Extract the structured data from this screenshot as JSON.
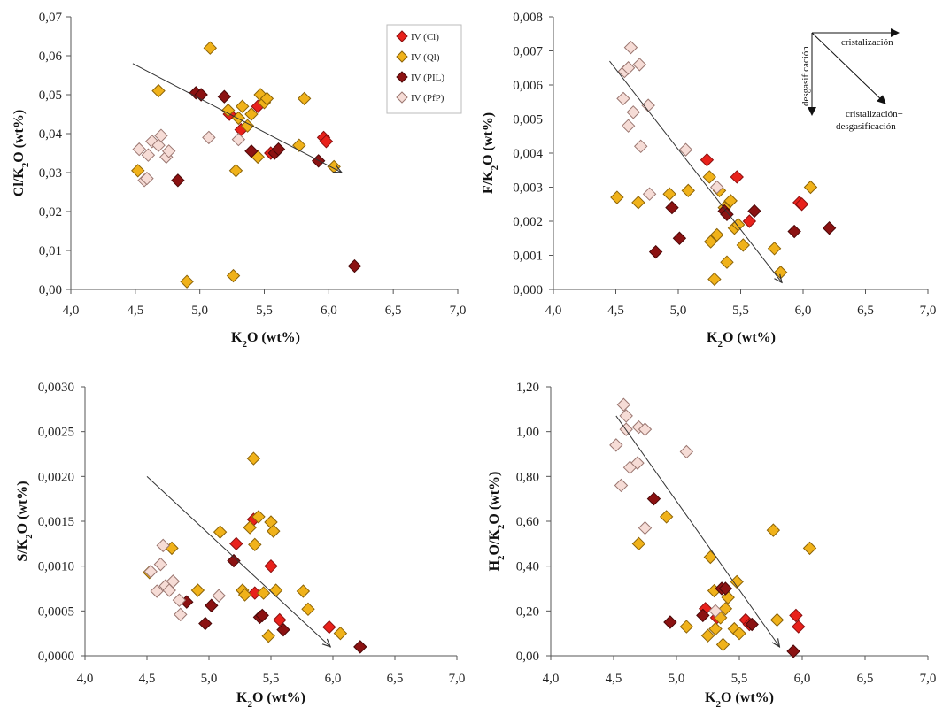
{
  "legend": {
    "entries": [
      {
        "label": "IV (Cl)",
        "color": "#e8211b",
        "stroke": "#8a1010"
      },
      {
        "label": "IV (Ql)",
        "color": "#f0b21a",
        "stroke": "#8a6208"
      },
      {
        "label": "IV (PIL)",
        "color": "#8b1212",
        "stroke": "#4a0808"
      },
      {
        "label": "IV (PfP)",
        "color": "#f6dcd6",
        "stroke": "#9a7670"
      }
    ]
  },
  "annotations": {
    "cristalizacion": "cristalización",
    "desgasificacion": "desgasificación",
    "combined_line1": "cristalización+",
    "combined_line2": "desgasificación"
  },
  "chart_data": [
    {
      "type": "scatter",
      "ylabel_parts": [
        "Cl/K",
        "2",
        "O  (wt%)"
      ],
      "xlabel_parts": [
        "K",
        "2",
        "O (wt%)"
      ],
      "xlim": [
        4.0,
        7.0
      ],
      "xticks": [
        "4,0",
        "4,5",
        "5,0",
        "5,5",
        "6,0",
        "6,5",
        "7,0"
      ],
      "ylim": [
        0.0,
        0.07
      ],
      "yticks": [
        "0,00",
        "0,01",
        "0,02",
        "0,03",
        "0,04",
        "0,05",
        "0,06",
        "0,07"
      ],
      "grid": false,
      "legend_position": "top-right",
      "trend_arrow": {
        "from": [
          4.48,
          0.058
        ],
        "to": [
          6.1,
          0.03
        ]
      },
      "series": [
        {
          "name": "IV (Cl)",
          "points": [
            [
              5.23,
              0.045
            ],
            [
              5.32,
              0.041
            ],
            [
              5.45,
              0.047
            ],
            [
              5.55,
              0.035
            ],
            [
              5.96,
              0.039
            ],
            [
              5.98,
              0.038
            ]
          ]
        },
        {
          "name": "IV (Ql)",
          "points": [
            [
              4.52,
              0.0305
            ],
            [
              4.68,
              0.051
            ],
            [
              4.9,
              0.002
            ],
            [
              5.08,
              0.062
            ],
            [
              5.22,
              0.046
            ],
            [
              5.26,
              0.0035
            ],
            [
              5.28,
              0.0305
            ],
            [
              5.3,
              0.044
            ],
            [
              5.33,
              0.047
            ],
            [
              5.37,
              0.042
            ],
            [
              5.4,
              0.045
            ],
            [
              5.45,
              0.034
            ],
            [
              5.47,
              0.05
            ],
            [
              5.5,
              0.048
            ],
            [
              5.52,
              0.049
            ],
            [
              5.77,
              0.037
            ],
            [
              5.81,
              0.049
            ],
            [
              6.04,
              0.0315
            ]
          ]
        },
        {
          "name": "IV (PIL)",
          "points": [
            [
              4.83,
              0.028
            ],
            [
              4.97,
              0.0505
            ],
            [
              5.01,
              0.05
            ],
            [
              5.19,
              0.0495
            ],
            [
              5.4,
              0.0355
            ],
            [
              5.58,
              0.035
            ],
            [
              5.61,
              0.036
            ],
            [
              5.92,
              0.033
            ],
            [
              6.2,
              0.006
            ]
          ]
        },
        {
          "name": "IV (PfP)",
          "points": [
            [
              4.53,
              0.036
            ],
            [
              4.57,
              0.028
            ],
            [
              4.59,
              0.0285
            ],
            [
              4.6,
              0.0345
            ],
            [
              4.63,
              0.038
            ],
            [
              4.68,
              0.037
            ],
            [
              4.7,
              0.0395
            ],
            [
              4.74,
              0.034
            ],
            [
              4.76,
              0.0355
            ],
            [
              5.07,
              0.039
            ],
            [
              5.3,
              0.0385
            ]
          ]
        }
      ]
    },
    {
      "type": "scatter",
      "ylabel_parts": [
        "F/K",
        "2",
        "O  (wt%)"
      ],
      "xlabel_parts": [
        "K",
        "2",
        "O (wt%)"
      ],
      "xlim": [
        4.0,
        7.0
      ],
      "xticks": [
        "4,0",
        "4,5",
        "5,0",
        "5,5",
        "6,0",
        "6,5",
        "7,0"
      ],
      "ylim": [
        0.0,
        0.008
      ],
      "yticks": [
        "0,000",
        "0,001",
        "0,002",
        "0,003",
        "0,004",
        "0,005",
        "0,006",
        "0,007",
        "0,008"
      ],
      "grid": false,
      "trend_arrow": {
        "from": [
          4.45,
          0.0067
        ],
        "to": [
          5.83,
          0.0002
        ]
      },
      "series": [
        {
          "name": "IV (Cl)",
          "points": [
            [
              5.23,
              0.0038
            ],
            [
              5.47,
              0.0033
            ],
            [
              5.57,
              0.002
            ],
            [
              5.97,
              0.00255
            ],
            [
              5.99,
              0.0025
            ]
          ]
        },
        {
          "name": "IV (Ql)",
          "points": [
            [
              4.51,
              0.0027
            ],
            [
              4.68,
              0.00255
            ],
            [
              4.93,
              0.0028
            ],
            [
              5.08,
              0.0029
            ],
            [
              5.25,
              0.0033
            ],
            [
              5.26,
              0.0014
            ],
            [
              5.29,
              0.0003
            ],
            [
              5.31,
              0.0016
            ],
            [
              5.33,
              0.0029
            ],
            [
              5.37,
              0.0024
            ],
            [
              5.39,
              0.0008
            ],
            [
              5.42,
              0.0026
            ],
            [
              5.45,
              0.0018
            ],
            [
              5.48,
              0.0019
            ],
            [
              5.52,
              0.0013
            ],
            [
              5.77,
              0.0012
            ],
            [
              5.82,
              0.0005
            ],
            [
              6.06,
              0.003
            ]
          ]
        },
        {
          "name": "IV (PIL)",
          "points": [
            [
              4.82,
              0.0011
            ],
            [
              4.95,
              0.0024
            ],
            [
              5.01,
              0.0015
            ],
            [
              5.37,
              0.0023
            ],
            [
              5.39,
              0.0022
            ],
            [
              5.61,
              0.0023
            ],
            [
              5.93,
              0.0017
            ],
            [
              6.21,
              0.0018
            ]
          ]
        },
        {
          "name": "IV (PfP)",
          "points": [
            [
              4.56,
              0.0056
            ],
            [
              4.57,
              0.0064
            ],
            [
              4.6,
              0.0065
            ],
            [
              4.6,
              0.0048
            ],
            [
              4.62,
              0.0071
            ],
            [
              4.64,
              0.0052
            ],
            [
              4.69,
              0.0066
            ],
            [
              4.7,
              0.0042
            ],
            [
              4.76,
              0.0054
            ],
            [
              4.77,
              0.0028
            ],
            [
              5.06,
              0.0041
            ],
            [
              5.31,
              0.003
            ]
          ]
        }
      ]
    },
    {
      "type": "scatter",
      "ylabel_parts": [
        "S/K",
        "2",
        "O  (wt%)"
      ],
      "xlabel_parts": [
        "K",
        "2",
        "O (wt%)"
      ],
      "xlim": [
        4.0,
        7.0
      ],
      "xticks": [
        "4,0",
        "4,5",
        "5,0",
        "5,5",
        "6,0",
        "6,5",
        "7,0"
      ],
      "ylim": [
        0.0,
        0.003
      ],
      "yticks": [
        "0,0000",
        "0,0005",
        "0,0010",
        "0,0015",
        "0,0020",
        "0,0025",
        "0,0030"
      ],
      "grid": false,
      "trend_arrow": {
        "from": [
          4.5,
          0.002
        ],
        "to": [
          5.98,
          0.0001
        ]
      },
      "series": [
        {
          "name": "IV (Cl)",
          "points": [
            [
              5.22,
              0.00125
            ],
            [
              5.36,
              0.00152
            ],
            [
              5.37,
              0.0007
            ],
            [
              5.5,
              0.001
            ],
            [
              5.57,
              0.0004
            ],
            [
              5.97,
              0.00032
            ]
          ]
        },
        {
          "name": "IV (Ql)",
          "points": [
            [
              4.52,
              0.00093
            ],
            [
              4.7,
              0.0012
            ],
            [
              4.91,
              0.00073
            ],
            [
              5.09,
              0.00138
            ],
            [
              5.27,
              0.00073
            ],
            [
              5.29,
              0.00068
            ],
            [
              5.33,
              0.00143
            ],
            [
              5.36,
              0.0022
            ],
            [
              5.37,
              0.00124
            ],
            [
              5.4,
              0.00155
            ],
            [
              5.44,
              0.0007
            ],
            [
              5.48,
              0.00022
            ],
            [
              5.5,
              0.00149
            ],
            [
              5.52,
              0.00139
            ],
            [
              5.54,
              0.00073
            ],
            [
              5.76,
              0.00072
            ],
            [
              5.8,
              0.00052
            ],
            [
              6.06,
              0.00025
            ]
          ]
        },
        {
          "name": "IV (PIL)",
          "points": [
            [
              4.82,
              0.0006
            ],
            [
              4.97,
              0.00036
            ],
            [
              5.02,
              0.00056
            ],
            [
              5.2,
              0.00106
            ],
            [
              5.41,
              0.00043
            ],
            [
              5.43,
              0.00045
            ],
            [
              5.6,
              0.00029
            ],
            [
              6.22,
              0.0001
            ]
          ]
        },
        {
          "name": "IV (PfP)",
          "points": [
            [
              4.53,
              0.00094
            ],
            [
              4.58,
              0.00072
            ],
            [
              4.61,
              0.00102
            ],
            [
              4.63,
              0.00123
            ],
            [
              4.65,
              0.00078
            ],
            [
              4.68,
              0.00073
            ],
            [
              4.71,
              0.00083
            ],
            [
              4.76,
              0.00062
            ],
            [
              4.77,
              0.00046
            ],
            [
              5.08,
              0.00067
            ]
          ]
        }
      ]
    },
    {
      "type": "scatter",
      "ylabel_parts": [
        "H",
        "2",
        "O/K",
        "2",
        "O  (wt%)"
      ],
      "xlabel_parts": [
        "K",
        "2",
        "O (wt%)"
      ],
      "xlim": [
        4.0,
        7.0
      ],
      "xticks": [
        "4,0",
        "4,5",
        "5,0",
        "5,5",
        "6,0",
        "6,5",
        "7,0"
      ],
      "ylim": [
        0.0,
        1.2
      ],
      "yticks": [
        "0,00",
        "0,20",
        "0,40",
        "0,60",
        "0,80",
        "1,00",
        "1,20"
      ],
      "grid": false,
      "trend_arrow": {
        "from": [
          4.52,
          1.07
        ],
        "to": [
          5.82,
          0.04
        ]
      },
      "series": [
        {
          "name": "IV (Cl)",
          "points": [
            [
              5.23,
              0.21
            ],
            [
              5.32,
              0.17
            ],
            [
              5.55,
              0.16
            ],
            [
              5.58,
              0.14
            ],
            [
              5.95,
              0.18
            ],
            [
              5.97,
              0.13
            ]
          ]
        },
        {
          "name": "IV (Ql)",
          "points": [
            [
              4.7,
              0.5
            ],
            [
              4.92,
              0.62
            ],
            [
              5.08,
              0.13
            ],
            [
              5.25,
              0.09
            ],
            [
              5.27,
              0.44
            ],
            [
              5.3,
              0.29
            ],
            [
              5.31,
              0.12
            ],
            [
              5.35,
              0.17
            ],
            [
              5.37,
              0.05
            ],
            [
              5.39,
              0.21
            ],
            [
              5.41,
              0.26
            ],
            [
              5.46,
              0.12
            ],
            [
              5.48,
              0.33
            ],
            [
              5.5,
              0.1
            ],
            [
              5.77,
              0.56
            ],
            [
              5.8,
              0.16
            ],
            [
              6.06,
              0.48
            ]
          ]
        },
        {
          "name": "IV (PIL)",
          "points": [
            [
              4.82,
              0.7
            ],
            [
              4.95,
              0.15
            ],
            [
              5.21,
              0.18
            ],
            [
              5.36,
              0.3
            ],
            [
              5.39,
              0.3
            ],
            [
              5.6,
              0.14
            ],
            [
              5.93,
              0.02
            ]
          ]
        },
        {
          "name": "IV (PfP)",
          "points": [
            [
              4.52,
              0.94
            ],
            [
              4.56,
              0.76
            ],
            [
              4.58,
              1.12
            ],
            [
              4.6,
              1.07
            ],
            [
              4.6,
              1.01
            ],
            [
              4.63,
              0.84
            ],
            [
              4.69,
              0.86
            ],
            [
              4.7,
              1.02
            ],
            [
              4.75,
              1.01
            ],
            [
              4.75,
              0.57
            ],
            [
              5.08,
              0.91
            ],
            [
              5.31,
              0.2
            ]
          ]
        }
      ]
    }
  ]
}
